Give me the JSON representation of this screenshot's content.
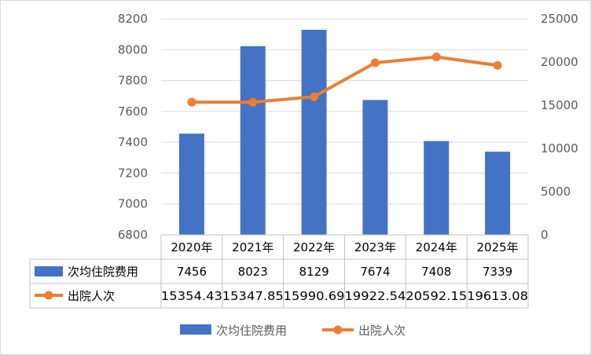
{
  "chart_data": {
    "type": "bar+line",
    "categories": [
      "2020年",
      "2021年",
      "2022年",
      "2023年",
      "2024年",
      "2025年"
    ],
    "series": [
      {
        "name": "次均住院费用",
        "type": "bar",
        "axis": "left",
        "color": "#4472C4",
        "values": [
          7456,
          8023,
          8129,
          7674,
          7408,
          7339
        ],
        "value_labels": [
          "7456",
          "8023",
          "8129",
          "7674",
          "7408",
          "7339"
        ]
      },
      {
        "name": "出院人次",
        "type": "line",
        "axis": "right",
        "color": "#ED7D31",
        "values": [
          15354.43,
          15347.85,
          15990.69,
          19922.54,
          20592.15,
          19613.08
        ],
        "value_labels": [
          "15354.43",
          "15347.85",
          "15990.69",
          "19922.54",
          "20592.15",
          "19613.08"
        ]
      }
    ],
    "y_left": {
      "ylim": [
        6800,
        8200
      ],
      "ticks": [
        "6800",
        "7000",
        "7200",
        "7400",
        "7600",
        "7800",
        "8000",
        "8200"
      ]
    },
    "y_right": {
      "ylim": [
        0,
        25000
      ],
      "ticks": [
        "0",
        "5000",
        "10000",
        "15000",
        "20000",
        "25000"
      ]
    },
    "grid": true,
    "legend_position": "bottom",
    "data_table": true
  }
}
